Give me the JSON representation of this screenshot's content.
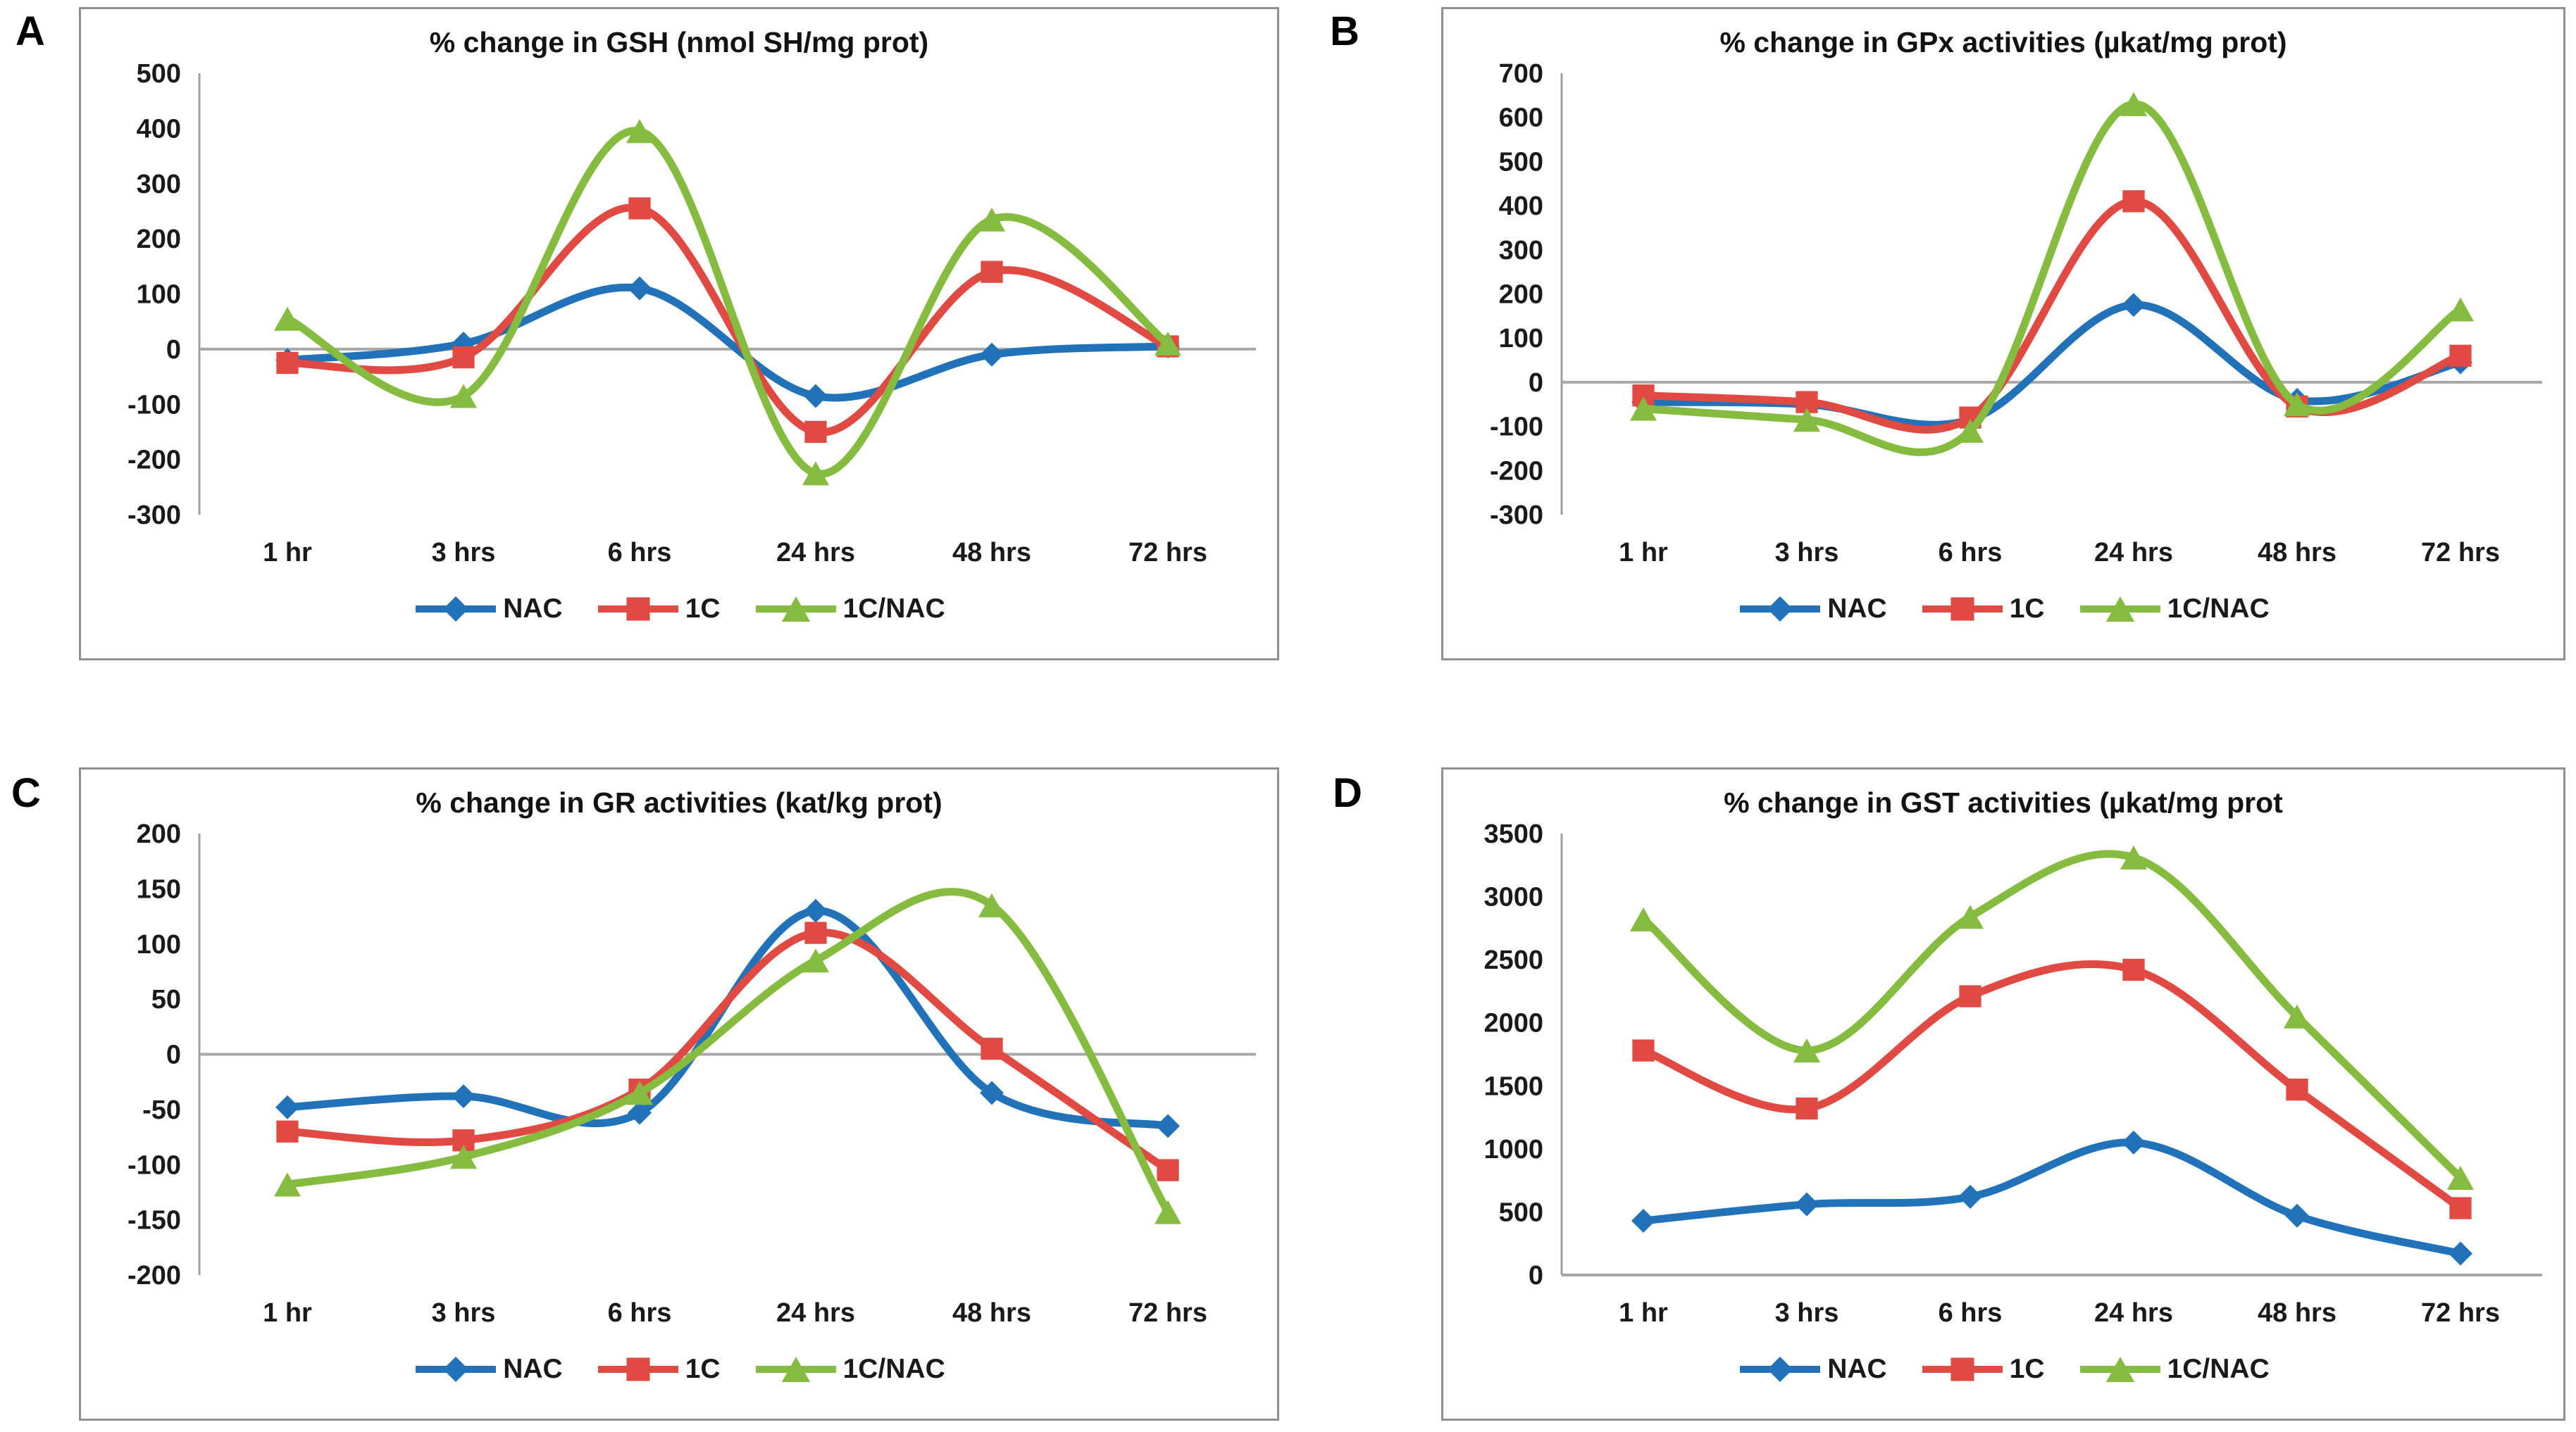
{
  "chart_data": [
    {
      "type": "line",
      "panel_label": "A",
      "title": "% change in GSH (nmol SH/mg prot)",
      "xlabel": "",
      "ylabel": "",
      "categories": [
        "1 hr",
        "3 hrs",
        "6 hrs",
        "24 hrs",
        "48 hrs",
        "72 hrs"
      ],
      "ylim": [
        -300,
        500
      ],
      "yticks": [
        500,
        400,
        300,
        200,
        100,
        0,
        -100,
        -200,
        -300
      ],
      "grid": false,
      "legend_position": "bottom",
      "line_style": "smooth",
      "series": [
        {
          "name": "NAC",
          "color": "#2172b8",
          "marker": "diamond",
          "values": [
            -20,
            10,
            110,
            -85,
            -10,
            5
          ]
        },
        {
          "name": "1C",
          "color": "#e04a42",
          "marker": "square",
          "values": [
            -25,
            -15,
            255,
            -150,
            140,
            5
          ]
        },
        {
          "name": "1C/NAC",
          "color": "#85bb3e",
          "marker": "triangle",
          "values": [
            55,
            -85,
            395,
            -225,
            235,
            10
          ]
        }
      ]
    },
    {
      "type": "line",
      "panel_label": "B",
      "title": "% change in GPx activities (µkat/mg prot)",
      "xlabel": "",
      "ylabel": "",
      "categories": [
        "1 hr",
        "3 hrs",
        "6 hrs",
        "24 hrs",
        "48 hrs",
        "72 hrs"
      ],
      "ylim": [
        -300,
        700
      ],
      "yticks": [
        700,
        600,
        500,
        400,
        300,
        200,
        100,
        0,
        -100,
        -200,
        -300
      ],
      "grid": false,
      "legend_position": "bottom",
      "line_style": "smooth",
      "series": [
        {
          "name": "NAC",
          "color": "#2172b8",
          "marker": "diamond",
          "values": [
            -45,
            -50,
            -85,
            175,
            -40,
            45
          ]
        },
        {
          "name": "1C",
          "color": "#e04a42",
          "marker": "square",
          "values": [
            -30,
            -45,
            -80,
            410,
            -55,
            60
          ]
        },
        {
          "name": "1C/NAC",
          "color": "#85bb3e",
          "marker": "triangle",
          "values": [
            -60,
            -85,
            -110,
            630,
            -50,
            165
          ]
        }
      ]
    },
    {
      "type": "line",
      "panel_label": "C",
      "title": "% change in GR activities (kat/kg prot)",
      "xlabel": "",
      "ylabel": "",
      "categories": [
        "1 hr",
        "3 hrs",
        "6 hrs",
        "24 hrs",
        "48 hrs",
        "72 hrs"
      ],
      "ylim": [
        -200,
        200
      ],
      "yticks": [
        200,
        150,
        100,
        50,
        0,
        -50,
        -100,
        -150,
        -200
      ],
      "grid": false,
      "legend_position": "bottom",
      "line_style": "smooth",
      "series": [
        {
          "name": "NAC",
          "color": "#2172b8",
          "marker": "diamond",
          "values": [
            -48,
            -38,
            -53,
            130,
            -35,
            -65
          ]
        },
        {
          "name": "1C",
          "color": "#e04a42",
          "marker": "square",
          "values": [
            -70,
            -78,
            -32,
            110,
            5,
            -105
          ]
        },
        {
          "name": "1C/NAC",
          "color": "#85bb3e",
          "marker": "triangle",
          "values": [
            -118,
            -93,
            -35,
            85,
            135,
            -143
          ]
        }
      ]
    },
    {
      "type": "line",
      "panel_label": "D",
      "title": "% change in GST activities (µkat/mg prot",
      "xlabel": "",
      "ylabel": "",
      "categories": [
        "1 hr",
        "3 hrs",
        "6 hrs",
        "24 hrs",
        "48 hrs",
        "72 hrs"
      ],
      "ylim": [
        0,
        3500
      ],
      "yticks": [
        3500,
        3000,
        2500,
        2000,
        1500,
        1000,
        500,
        0
      ],
      "grid": false,
      "legend_position": "bottom",
      "line_style": "smooth",
      "series": [
        {
          "name": "NAC",
          "color": "#2172b8",
          "marker": "diamond",
          "values": [
            430,
            560,
            620,
            1050,
            470,
            170
          ]
        },
        {
          "name": "1C",
          "color": "#e04a42",
          "marker": "square",
          "values": [
            1780,
            1320,
            2210,
            2420,
            1470,
            530
          ]
        },
        {
          "name": "1C/NAC",
          "color": "#85bb3e",
          "marker": "triangle",
          "values": [
            2820,
            1780,
            2840,
            3310,
            2050,
            770
          ]
        }
      ]
    }
  ],
  "style_colors": {
    "axis_line": "#9f9f9f",
    "zero_line": "#a8a8a8",
    "text": "#1a1a1a"
  }
}
